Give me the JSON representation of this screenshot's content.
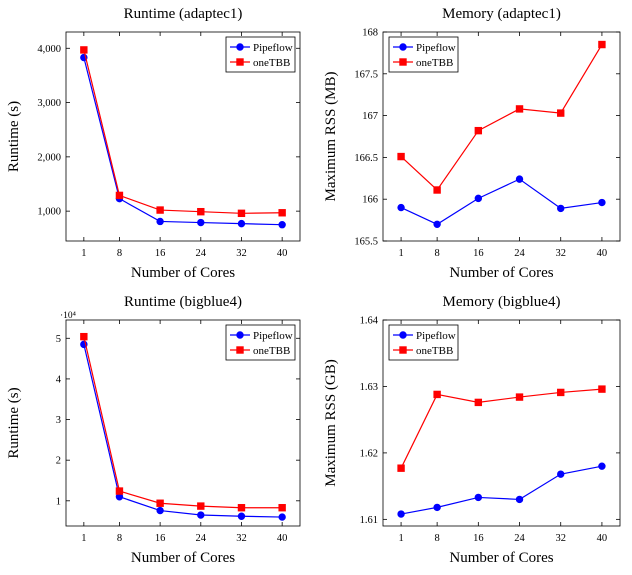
{
  "colors": {
    "pipeflow": "#0000ff",
    "onetbb": "#ff0000"
  },
  "chart_data": [
    {
      "type": "line",
      "title": "Runtime (adaptec1)",
      "xlabel": "Number of Cores",
      "ylabel": "Runtime (s)",
      "x": [
        1,
        8,
        16,
        24,
        32,
        40
      ],
      "x_tick_labels": [
        "1",
        "8",
        "16",
        "24",
        "32",
        "40"
      ],
      "ylim": [
        450,
        4300
      ],
      "y_ticks": [
        1000,
        2000,
        3000,
        4000
      ],
      "y_tick_labels": [
        "1,000",
        "2,000",
        "3,000",
        "4,000"
      ],
      "y_exponent_label": "",
      "legend": "top-right",
      "grid": false,
      "series": [
        {
          "name": "Pipeflow",
          "marker": "circle",
          "values": [
            3830,
            1230,
            810,
            790,
            770,
            750
          ]
        },
        {
          "name": "oneTBB",
          "marker": "square",
          "values": [
            3970,
            1290,
            1020,
            990,
            960,
            970
          ]
        }
      ]
    },
    {
      "type": "line",
      "title": "Memory (adaptec1)",
      "xlabel": "Number of Cores",
      "ylabel": "Maximum RSS (MB)",
      "x": [
        1,
        8,
        16,
        24,
        32,
        40
      ],
      "x_tick_labels": [
        "1",
        "8",
        "16",
        "24",
        "32",
        "40"
      ],
      "ylim": [
        165.5,
        168
      ],
      "y_ticks": [
        165.5,
        166,
        166.5,
        167,
        167.5,
        168
      ],
      "y_tick_labels": [
        "165.5",
        "166",
        "166.5",
        "167",
        "167.5",
        "168"
      ],
      "y_exponent_label": "",
      "legend": "top-left",
      "grid": false,
      "series": [
        {
          "name": "Pipeflow",
          "marker": "circle",
          "values": [
            165.9,
            165.7,
            166.01,
            166.24,
            165.89,
            165.96
          ]
        },
        {
          "name": "oneTBB",
          "marker": "square",
          "values": [
            166.51,
            166.11,
            166.82,
            167.08,
            167.03,
            167.85
          ]
        }
      ]
    },
    {
      "type": "line",
      "title": "Runtime (bigblue4)",
      "xlabel": "Number of Cores",
      "ylabel": "Runtime (s)",
      "x": [
        1,
        8,
        16,
        24,
        32,
        40
      ],
      "x_tick_labels": [
        "1",
        "8",
        "16",
        "24",
        "32",
        "40"
      ],
      "ylim": [
        3800,
        54500
      ],
      "y_ticks": [
        10000,
        20000,
        30000,
        40000,
        50000
      ],
      "y_tick_labels": [
        "1",
        "2",
        "3",
        "4",
        "5"
      ],
      "y_exponent_label": "·10⁴",
      "legend": "top-right",
      "grid": false,
      "series": [
        {
          "name": "Pipeflow",
          "marker": "circle",
          "values": [
            48500,
            11000,
            7600,
            6500,
            6200,
            6000
          ]
        },
        {
          "name": "oneTBB",
          "marker": "square",
          "values": [
            50400,
            12400,
            9400,
            8700,
            8300,
            8300
          ]
        }
      ]
    },
    {
      "type": "line",
      "title": "Memory (bigblue4)",
      "xlabel": "Number of Cores",
      "ylabel": "Maximum RSS (GB)",
      "x": [
        1,
        8,
        16,
        24,
        32,
        40
      ],
      "x_tick_labels": [
        "1",
        "8",
        "16",
        "24",
        "32",
        "40"
      ],
      "ylim": [
        1.609,
        1.64
      ],
      "y_ticks": [
        1.61,
        1.62,
        1.63,
        1.64
      ],
      "y_tick_labels": [
        "1.61",
        "1.62",
        "1.63",
        "1.64"
      ],
      "y_exponent_label": "",
      "legend": "top-left",
      "grid": false,
      "series": [
        {
          "name": "Pipeflow",
          "marker": "circle",
          "values": [
            1.6108,
            1.6118,
            1.6133,
            1.613,
            1.6168,
            1.618
          ]
        },
        {
          "name": "oneTBB",
          "marker": "square",
          "values": [
            1.6177,
            1.6288,
            1.6276,
            1.6284,
            1.6291,
            1.6296
          ]
        }
      ]
    }
  ]
}
